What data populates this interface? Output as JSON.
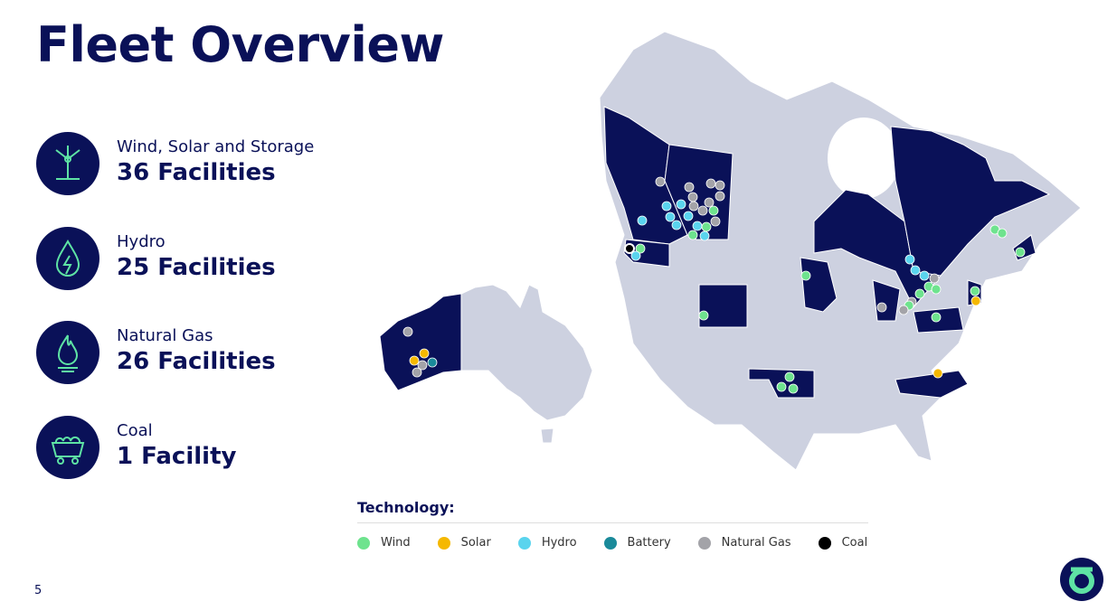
{
  "title": "Fleet Overview",
  "stats": [
    {
      "label": "Wind, Solar and Storage",
      "value": "36 Facilities"
    },
    {
      "label": "Hydro",
      "value": "25 Facilities"
    },
    {
      "label": "Natural Gas",
      "value": "26 Facilities"
    },
    {
      "label": "Coal",
      "value": "1 Facility"
    }
  ],
  "legend": {
    "title": "Technology:",
    "items": [
      {
        "name": "Wind",
        "color": "#6ee38e"
      },
      {
        "name": "Solar",
        "color": "#f5b800"
      },
      {
        "name": "Hydro",
        "color": "#5ad4ee"
      },
      {
        "name": "Battery",
        "color": "#1a8a9a"
      },
      {
        "name": "Natural Gas",
        "color": "#a3a3a8"
      },
      {
        "name": "Coal",
        "color": "#000000"
      }
    ]
  },
  "page_number": "5"
}
